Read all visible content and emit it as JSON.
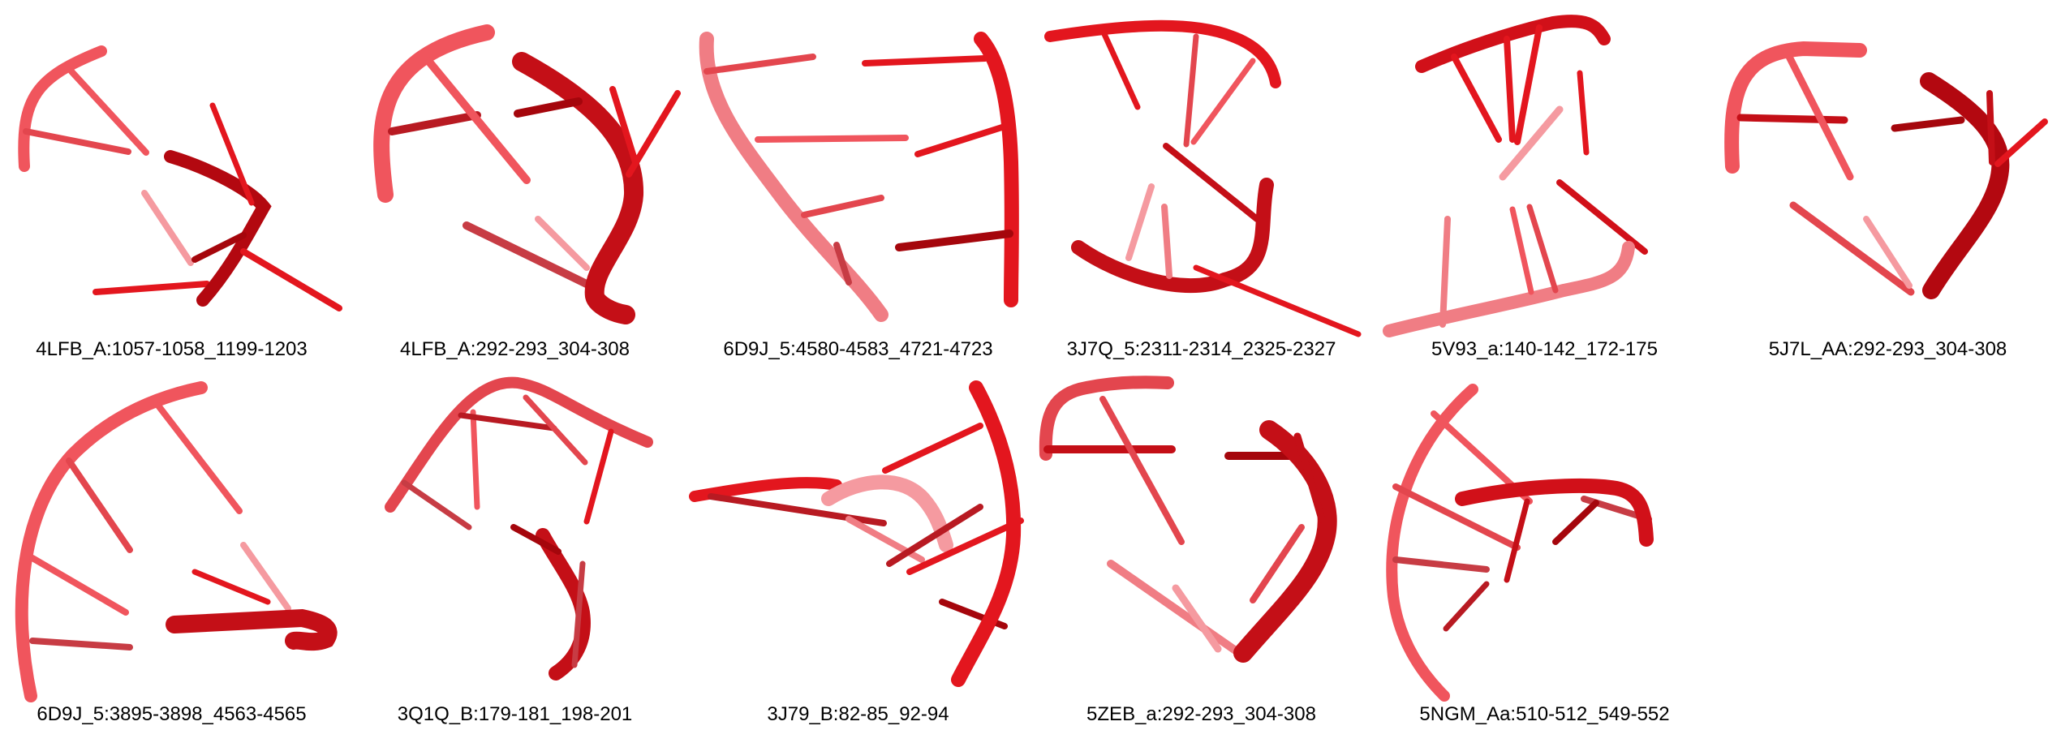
{
  "panels": [
    {
      "id": "p1",
      "label": "4LFB_A:1057-1058_1199-1203"
    },
    {
      "id": "p2",
      "label": "4LFB_A:292-293_304-308"
    },
    {
      "id": "p3",
      "label": "6D9J_5:4580-4583_4721-4723"
    },
    {
      "id": "p4",
      "label": "3J7Q_5:2311-2314_2325-2327"
    },
    {
      "id": "p5",
      "label": "5V93_a:140-142_172-175"
    },
    {
      "id": "p6",
      "label": "5J7L_AA:292-293_304-308"
    },
    {
      "id": "p7",
      "label": "6D9J_5:3895-3898_4563-4565"
    },
    {
      "id": "p8",
      "label": "3Q1Q_B:179-181_198-201"
    },
    {
      "id": "p9",
      "label": "3J79_B:82-85_92-94"
    },
    {
      "id": "p10",
      "label": "5ZEB_a:292-293_304-308"
    },
    {
      "id": "p11",
      "label": "5NGM_Aa:510-512_549-552"
    }
  ],
  "colors": {
    "light_red": "#f0555d",
    "red": "#e3161e",
    "dark_red": "#a5060c",
    "faded_red": "#f59aa0"
  }
}
